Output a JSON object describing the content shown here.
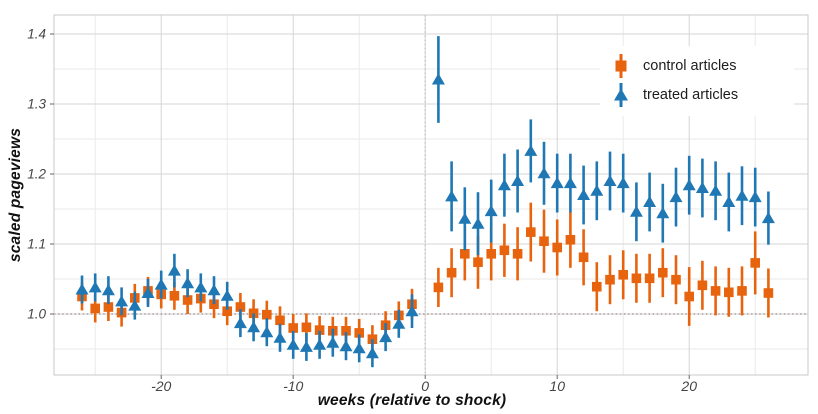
{
  "chart_data": {
    "type": "scatter",
    "title": "",
    "xlabel": "weeks (relative to shock)",
    "ylabel": "scaled pageviews",
    "xlim": [
      -28.1,
      29.0
    ],
    "ylim": [
      0.913,
      1.427
    ],
    "x_ticks": [
      -20,
      -10,
      0,
      10,
      20
    ],
    "x_minor_ticks": [
      -25,
      -15,
      -5,
      5,
      15,
      25
    ],
    "y_ticks": [
      1.0,
      1.1,
      1.2,
      1.3,
      1.4
    ],
    "y_minor_ticks": [
      0.95,
      1.05,
      1.15,
      1.25,
      1.35
    ],
    "grid": true,
    "legend_position": "top-right",
    "reference_lines": {
      "horizontal_dotted_y": 1.0,
      "vertical_dotted_x": 0
    },
    "colors": {
      "control": "#e8630d",
      "treated": "#1f78b4",
      "grid_major": "#d5d5d5",
      "grid_minor": "#eaeaea",
      "panel_border": "#c9c9c9",
      "tick_text": "#444444",
      "ref_line_h": "#9c8989",
      "ref_line_v": "#cabdbd"
    },
    "series": [
      {
        "name": "control articles",
        "marker": "square",
        "color": "#e8630d",
        "points": [
          [
            -26,
            1.025,
            0.02
          ],
          [
            -25,
            1.008,
            0.02
          ],
          [
            -24,
            1.01,
            0.02
          ],
          [
            -23,
            1.002,
            0.02
          ],
          [
            -22,
            1.023,
            0.02
          ],
          [
            -21,
            1.033,
            0.02
          ],
          [
            -20,
            1.028,
            0.02
          ],
          [
            -19,
            1.026,
            0.02
          ],
          [
            -18,
            1.02,
            0.02
          ],
          [
            -17,
            1.022,
            0.02
          ],
          [
            -16,
            1.014,
            0.02
          ],
          [
            -15,
            1.004,
            0.02
          ],
          [
            -14,
            1.01,
            0.02
          ],
          [
            -13,
            1.001,
            0.02
          ],
          [
            -12,
            0.999,
            0.02
          ],
          [
            -11,
            0.991,
            0.02
          ],
          [
            -10,
            0.98,
            0.02
          ],
          [
            -9,
            0.981,
            0.02
          ],
          [
            -8,
            0.977,
            0.02
          ],
          [
            -7,
            0.976,
            0.02
          ],
          [
            -6,
            0.976,
            0.02
          ],
          [
            -5,
            0.973,
            0.02
          ],
          [
            -4,
            0.964,
            0.02
          ],
          [
            -3,
            0.984,
            0.02
          ],
          [
            -2,
            0.998,
            0.02
          ],
          [
            -1,
            1.014,
            0.022
          ],
          [
            1,
            1.038,
            0.028
          ],
          [
            2,
            1.059,
            0.035
          ],
          [
            3,
            1.086,
            0.038
          ],
          [
            4,
            1.074,
            0.038
          ],
          [
            5,
            1.086,
            0.038
          ],
          [
            6,
            1.091,
            0.038
          ],
          [
            7,
            1.086,
            0.038
          ],
          [
            8,
            1.117,
            0.042
          ],
          [
            9,
            1.104,
            0.045
          ],
          [
            10,
            1.095,
            0.04
          ],
          [
            11,
            1.106,
            0.04
          ],
          [
            12,
            1.081,
            0.04
          ],
          [
            13,
            1.039,
            0.035
          ],
          [
            14,
            1.049,
            0.035
          ],
          [
            15,
            1.056,
            0.035
          ],
          [
            16,
            1.051,
            0.035
          ],
          [
            17,
            1.051,
            0.035
          ],
          [
            18,
            1.059,
            0.035
          ],
          [
            19,
            1.049,
            0.035
          ],
          [
            20,
            1.025,
            0.042
          ],
          [
            21,
            1.041,
            0.035
          ],
          [
            22,
            1.033,
            0.035
          ],
          [
            23,
            1.031,
            0.035
          ],
          [
            24,
            1.033,
            0.035
          ],
          [
            25,
            1.073,
            0.045
          ],
          [
            26,
            1.03,
            0.035
          ]
        ]
      },
      {
        "name": "treated articles",
        "marker": "triangle",
        "color": "#1f78b4",
        "points": [
          [
            -26,
            1.035,
            0.02
          ],
          [
            -25,
            1.038,
            0.02
          ],
          [
            -24,
            1.034,
            0.02
          ],
          [
            -23,
            1.018,
            0.02
          ],
          [
            -22,
            1.012,
            0.02
          ],
          [
            -21,
            1.03,
            0.02
          ],
          [
            -20,
            1.042,
            0.02
          ],
          [
            -19,
            1.062,
            0.024
          ],
          [
            -18,
            1.044,
            0.02
          ],
          [
            -17,
            1.038,
            0.02
          ],
          [
            -16,
            1.034,
            0.02
          ],
          [
            -15,
            1.026,
            0.02
          ],
          [
            -14,
            0.987,
            0.02
          ],
          [
            -13,
            0.981,
            0.02
          ],
          [
            -12,
            0.974,
            0.02
          ],
          [
            -11,
            0.966,
            0.02
          ],
          [
            -10,
            0.956,
            0.02
          ],
          [
            -9,
            0.953,
            0.02
          ],
          [
            -8,
            0.956,
            0.02
          ],
          [
            -7,
            0.959,
            0.02
          ],
          [
            -6,
            0.954,
            0.02
          ],
          [
            -5,
            0.951,
            0.02
          ],
          [
            -4,
            0.944,
            0.02
          ],
          [
            -3,
            0.967,
            0.02
          ],
          [
            -2,
            0.986,
            0.02
          ],
          [
            -1,
            1.004,
            0.024
          ],
          [
            1,
            1.335,
            0.062
          ],
          [
            2,
            1.168,
            0.05
          ],
          [
            3,
            1.136,
            0.045
          ],
          [
            4,
            1.129,
            0.045
          ],
          [
            5,
            1.147,
            0.045
          ],
          [
            6,
            1.184,
            0.045
          ],
          [
            7,
            1.19,
            0.045
          ],
          [
            8,
            1.233,
            0.045
          ],
          [
            9,
            1.201,
            0.045
          ],
          [
            10,
            1.187,
            0.042
          ],
          [
            11,
            1.187,
            0.042
          ],
          [
            12,
            1.17,
            0.042
          ],
          [
            13,
            1.176,
            0.042
          ],
          [
            14,
            1.19,
            0.042
          ],
          [
            15,
            1.187,
            0.042
          ],
          [
            16,
            1.146,
            0.042
          ],
          [
            17,
            1.16,
            0.042
          ],
          [
            18,
            1.144,
            0.042
          ],
          [
            19,
            1.167,
            0.042
          ],
          [
            20,
            1.184,
            0.042
          ],
          [
            21,
            1.18,
            0.042
          ],
          [
            22,
            1.176,
            0.042
          ],
          [
            23,
            1.16,
            0.042
          ],
          [
            24,
            1.169,
            0.042
          ],
          [
            25,
            1.167,
            0.042
          ],
          [
            26,
            1.137,
            0.038
          ]
        ]
      }
    ]
  }
}
